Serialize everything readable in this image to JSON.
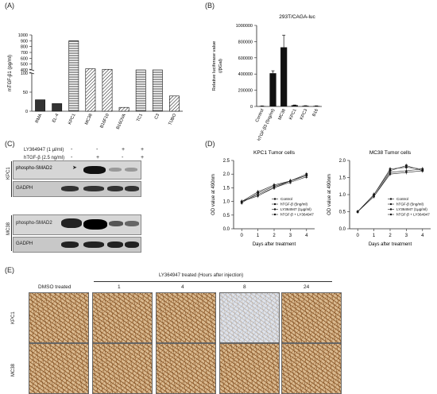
{
  "panels": {
    "A": "(A)",
    "B": "(B)",
    "C": "(C)",
    "D": "(D)",
    "E": "(E)"
  },
  "chart_data": [
    {
      "type": "bar",
      "panel": "A",
      "title": "",
      "ylabel": "mTGF-β1 (pg/ml)",
      "xlabel": "",
      "categories": [
        "RMA",
        "EL-4",
        "KPC1",
        "MC38",
        "B16F10",
        "B16OVA",
        "TC1",
        "C3",
        "TUBO"
      ],
      "values": [
        30,
        20,
        900,
        420,
        410,
        10,
        170,
        140,
        40
      ],
      "ylim": [
        0,
        1000
      ],
      "axis_break": [
        100,
        400
      ],
      "ytick_labels": [
        "0",
        "50",
        "100",
        "400",
        "500",
        "600",
        "700",
        "800",
        "900",
        "1000"
      ],
      "patterns": [
        "solid",
        "solid",
        "hlines",
        "hatch",
        "hatch",
        "hatch",
        "hlines",
        "hlines",
        "hatch"
      ],
      "grid": false
    },
    {
      "type": "bar",
      "panel": "B",
      "title": "293T/CAGA-luc",
      "ylabel": "Relative luciferase value\n(/βGal)",
      "xlabel": "",
      "categories": [
        "Control",
        "hTGF-β3 (5ng/ml)",
        "MC38",
        "KPC1",
        "KPC3",
        "B16"
      ],
      "values": [
        5000,
        410000,
        730000,
        15000,
        8000,
        6000
      ],
      "errors": [
        2000,
        30000,
        150000,
        3000,
        2000,
        2000
      ],
      "ylim": [
        0,
        1000000
      ],
      "ytick_labels": [
        "0",
        "200000",
        "400000",
        "600000",
        "800000",
        "1000000"
      ],
      "grid": false
    },
    {
      "type": "line",
      "panel": "D-left",
      "title": "KPC1 Tumor cells",
      "xlabel": "Days after treatment",
      "ylabel": "OD value at 490nm",
      "x": [
        0,
        1,
        2,
        3,
        4
      ],
      "xlim": [
        -0.5,
        4.5
      ],
      "ylim": [
        0.0,
        2.5
      ],
      "ytick_labels": [
        "0.0",
        "0.5",
        "1.0",
        "1.5",
        "2.0",
        "2.5"
      ],
      "series": [
        {
          "name": "Control",
          "values": [
            1.0,
            1.35,
            1.6,
            1.75,
            1.95
          ]
        },
        {
          "name": "hTGF-β   (5ng/ml)",
          "values": [
            0.95,
            1.3,
            1.55,
            1.75,
            2.0
          ]
        },
        {
          "name": "LY364947  (1μg/ml)",
          "values": [
            1.0,
            1.25,
            1.5,
            1.7,
            1.9
          ]
        },
        {
          "name": "hTGF-β   + LY364947",
          "values": [
            1.0,
            1.2,
            1.5,
            1.75,
            1.95
          ]
        }
      ],
      "legend": "bottom-right",
      "grid": false
    },
    {
      "type": "line",
      "panel": "D-right",
      "title": "MC38 Tumor cells",
      "xlabel": "Days after treatment",
      "ylabel": "OD value at 490nm",
      "x": [
        0,
        1,
        2,
        3,
        4
      ],
      "xlim": [
        -0.5,
        4.5
      ],
      "ylim": [
        0.0,
        2.0
      ],
      "ytick_labels": [
        "0.0",
        "0.5",
        "1.0",
        "1.5",
        "2.0"
      ],
      "series": [
        {
          "name": "Control",
          "values": [
            0.5,
            1.0,
            1.75,
            1.8,
            1.75
          ]
        },
        {
          "name": "hTGF-β   (5ng/ml)",
          "values": [
            0.5,
            1.0,
            1.7,
            1.85,
            1.7
          ]
        },
        {
          "name": "LY364947  (1μg/ml)",
          "values": [
            0.5,
            0.95,
            1.65,
            1.7,
            1.75
          ]
        },
        {
          "name": "hTGF-β   + LY364947",
          "values": [
            0.5,
            0.95,
            1.6,
            1.65,
            1.7
          ]
        }
      ],
      "legend": "bottom-right",
      "grid": false
    }
  ],
  "blot": {
    "treatments": [
      {
        "label": "LY364947 (1 μl/ml)",
        "signs": [
          "-",
          "-",
          "+",
          "+"
        ]
      },
      {
        "label": "hTGF-β (2.5 ng/ml)",
        "signs": [
          "-",
          "+",
          "-",
          "+"
        ]
      }
    ],
    "groups": [
      {
        "name": "KPC1",
        "rows": [
          "phospho-SMAD2",
          "GADPH"
        ]
      },
      {
        "name": "MC38",
        "rows": [
          "phospho-SMAD2",
          "GADPH"
        ]
      }
    ]
  },
  "ihc": {
    "header": "LY364947 treated (Hours after injection)",
    "columns": [
      "DMSO treated",
      "1",
      "4",
      "8",
      "24"
    ],
    "rows": [
      "KPC1",
      "MC38"
    ]
  }
}
